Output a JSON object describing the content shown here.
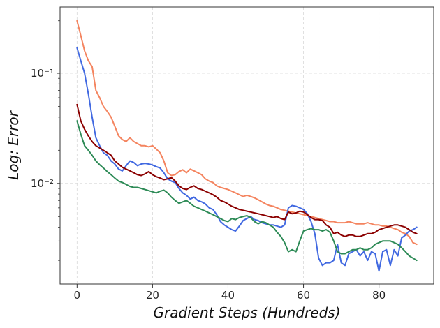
{
  "chart_data": {
    "type": "line",
    "title": "",
    "xlabel": "Gradient Steps (Hundreds)",
    "ylabel": "Log: Error",
    "xscale": "linear",
    "yscale": "log",
    "xlim": [
      -4.5,
      94.5
    ],
    "ylim": [
      0.00122,
      0.4
    ],
    "grid": true,
    "legend": "none",
    "xticks": [
      0,
      20,
      40,
      60,
      80
    ],
    "xtick_labels": [
      "0",
      "20",
      "40",
      "60",
      "80"
    ],
    "yticks": [
      0.01,
      0.1
    ],
    "ytick_labels": [
      "10⁻²",
      "10⁻¹"
    ],
    "x": [
      0,
      1,
      2,
      3,
      4,
      5,
      6,
      7,
      8,
      9,
      10,
      11,
      12,
      13,
      14,
      15,
      16,
      17,
      18,
      19,
      20,
      21,
      22,
      23,
      24,
      25,
      26,
      27,
      28,
      29,
      30,
      31,
      32,
      33,
      34,
      35,
      36,
      37,
      38,
      39,
      40,
      41,
      42,
      43,
      44,
      45,
      46,
      47,
      48,
      49,
      50,
      51,
      52,
      53,
      54,
      55,
      56,
      57,
      58,
      59,
      60,
      61,
      62,
      63,
      64,
      65,
      66,
      67,
      68,
      69,
      70,
      71,
      72,
      73,
      74,
      75,
      76,
      77,
      78,
      79,
      80,
      81,
      82,
      83,
      84,
      85,
      86,
      87,
      88,
      89,
      90
    ],
    "series": [
      {
        "color": "#f4845f",
        "values": [
          0.3,
          0.22,
          0.16,
          0.13,
          0.115,
          0.07,
          0.06,
          0.05,
          0.045,
          0.04,
          0.033,
          0.027,
          0.025,
          0.024,
          0.026,
          0.024,
          0.023,
          0.022,
          0.022,
          0.0215,
          0.022,
          0.0205,
          0.019,
          0.016,
          0.0125,
          0.0118,
          0.012,
          0.0128,
          0.0133,
          0.0125,
          0.0135,
          0.013,
          0.0125,
          0.012,
          0.011,
          0.0105,
          0.0102,
          0.0095,
          0.0092,
          0.009,
          0.0088,
          0.0085,
          0.0082,
          0.0079,
          0.0076,
          0.0078,
          0.0076,
          0.0074,
          0.0071,
          0.0068,
          0.0065,
          0.0063,
          0.0062,
          0.006,
          0.0058,
          0.0057,
          0.0056,
          0.0055,
          0.0054,
          0.0053,
          0.0052,
          0.0051,
          0.005,
          0.0049,
          0.0048,
          0.0047,
          0.0046,
          0.0045,
          0.0045,
          0.0044,
          0.0044,
          0.0044,
          0.0045,
          0.0044,
          0.0043,
          0.0043,
          0.0043,
          0.0044,
          0.0043,
          0.0042,
          0.0042,
          0.0041,
          0.0041,
          0.004,
          0.0039,
          0.0038,
          0.0036,
          0.0035,
          0.0033,
          0.0029,
          0.0028
        ]
      },
      {
        "color": "#4169e1",
        "values": [
          0.17,
          0.13,
          0.1,
          0.065,
          0.04,
          0.026,
          0.022,
          0.019,
          0.018,
          0.016,
          0.015,
          0.0135,
          0.013,
          0.0145,
          0.016,
          0.0155,
          0.0145,
          0.015,
          0.0152,
          0.015,
          0.0147,
          0.0142,
          0.0138,
          0.0125,
          0.011,
          0.0105,
          0.0102,
          0.009,
          0.0082,
          0.0078,
          0.0072,
          0.0075,
          0.007,
          0.0068,
          0.0065,
          0.006,
          0.0058,
          0.0052,
          0.0045,
          0.0042,
          0.004,
          0.0038,
          0.0037,
          0.0041,
          0.0046,
          0.0048,
          0.005,
          0.0047,
          0.0046,
          0.0044,
          0.0043,
          0.0042,
          0.0042,
          0.0041,
          0.004,
          0.0042,
          0.006,
          0.0063,
          0.0062,
          0.006,
          0.0058,
          0.0053,
          0.0045,
          0.0035,
          0.0021,
          0.0018,
          0.0019,
          0.0019,
          0.002,
          0.0028,
          0.0019,
          0.0018,
          0.0023,
          0.0024,
          0.0025,
          0.0022,
          0.0024,
          0.002,
          0.0024,
          0.0023,
          0.0016,
          0.0024,
          0.0025,
          0.0018,
          0.0025,
          0.0022,
          0.0032,
          0.0034,
          0.0037,
          0.0038,
          0.004
        ]
      },
      {
        "color": "#8b0000",
        "values": [
          0.052,
          0.037,
          0.031,
          0.027,
          0.024,
          0.022,
          0.021,
          0.02,
          0.019,
          0.018,
          0.016,
          0.015,
          0.014,
          0.0135,
          0.013,
          0.0125,
          0.012,
          0.0118,
          0.0122,
          0.0128,
          0.012,
          0.0115,
          0.0112,
          0.0108,
          0.011,
          0.0113,
          0.0105,
          0.0095,
          0.009,
          0.0088,
          0.0092,
          0.0095,
          0.009,
          0.0088,
          0.0085,
          0.0082,
          0.0079,
          0.0075,
          0.007,
          0.0068,
          0.0065,
          0.0062,
          0.006,
          0.0058,
          0.0057,
          0.0056,
          0.0055,
          0.0054,
          0.0053,
          0.0052,
          0.0051,
          0.005,
          0.0049,
          0.005,
          0.0048,
          0.0047,
          0.0055,
          0.0053,
          0.0054,
          0.0056,
          0.0055,
          0.0052,
          0.0049,
          0.0047,
          0.0047,
          0.0046,
          0.0042,
          0.004,
          0.0035,
          0.0036,
          0.0034,
          0.0033,
          0.0034,
          0.0034,
          0.0033,
          0.0033,
          0.0034,
          0.0035,
          0.0035,
          0.0036,
          0.0038,
          0.0039,
          0.004,
          0.0041,
          0.0042,
          0.0042,
          0.0041,
          0.004,
          0.0038,
          0.0036,
          0.0035
        ]
      },
      {
        "color": "#2e8b57",
        "values": [
          0.037,
          0.028,
          0.022,
          0.02,
          0.018,
          0.016,
          0.0148,
          0.0138,
          0.0128,
          0.012,
          0.0112,
          0.0105,
          0.0102,
          0.0098,
          0.0094,
          0.0092,
          0.0092,
          0.009,
          0.0088,
          0.0086,
          0.0084,
          0.0082,
          0.0085,
          0.0087,
          0.0082,
          0.0075,
          0.007,
          0.0066,
          0.0068,
          0.007,
          0.0066,
          0.0062,
          0.006,
          0.0058,
          0.0056,
          0.0054,
          0.0052,
          0.005,
          0.0048,
          0.0046,
          0.0045,
          0.0048,
          0.0047,
          0.0049,
          0.005,
          0.0051,
          0.0049,
          0.0045,
          0.0043,
          0.0045,
          0.0044,
          0.0042,
          0.004,
          0.0036,
          0.0033,
          0.0029,
          0.0024,
          0.0025,
          0.0024,
          0.003,
          0.0037,
          0.0038,
          0.0039,
          0.0038,
          0.0038,
          0.0037,
          0.0038,
          0.0036,
          0.003,
          0.0024,
          0.0023,
          0.0023,
          0.0024,
          0.0025,
          0.0025,
          0.0026,
          0.0025,
          0.0025,
          0.0026,
          0.0028,
          0.0029,
          0.003,
          0.003,
          0.003,
          0.0029,
          0.0028,
          0.0026,
          0.0024,
          0.0022,
          0.0021,
          0.002
        ]
      }
    ]
  }
}
